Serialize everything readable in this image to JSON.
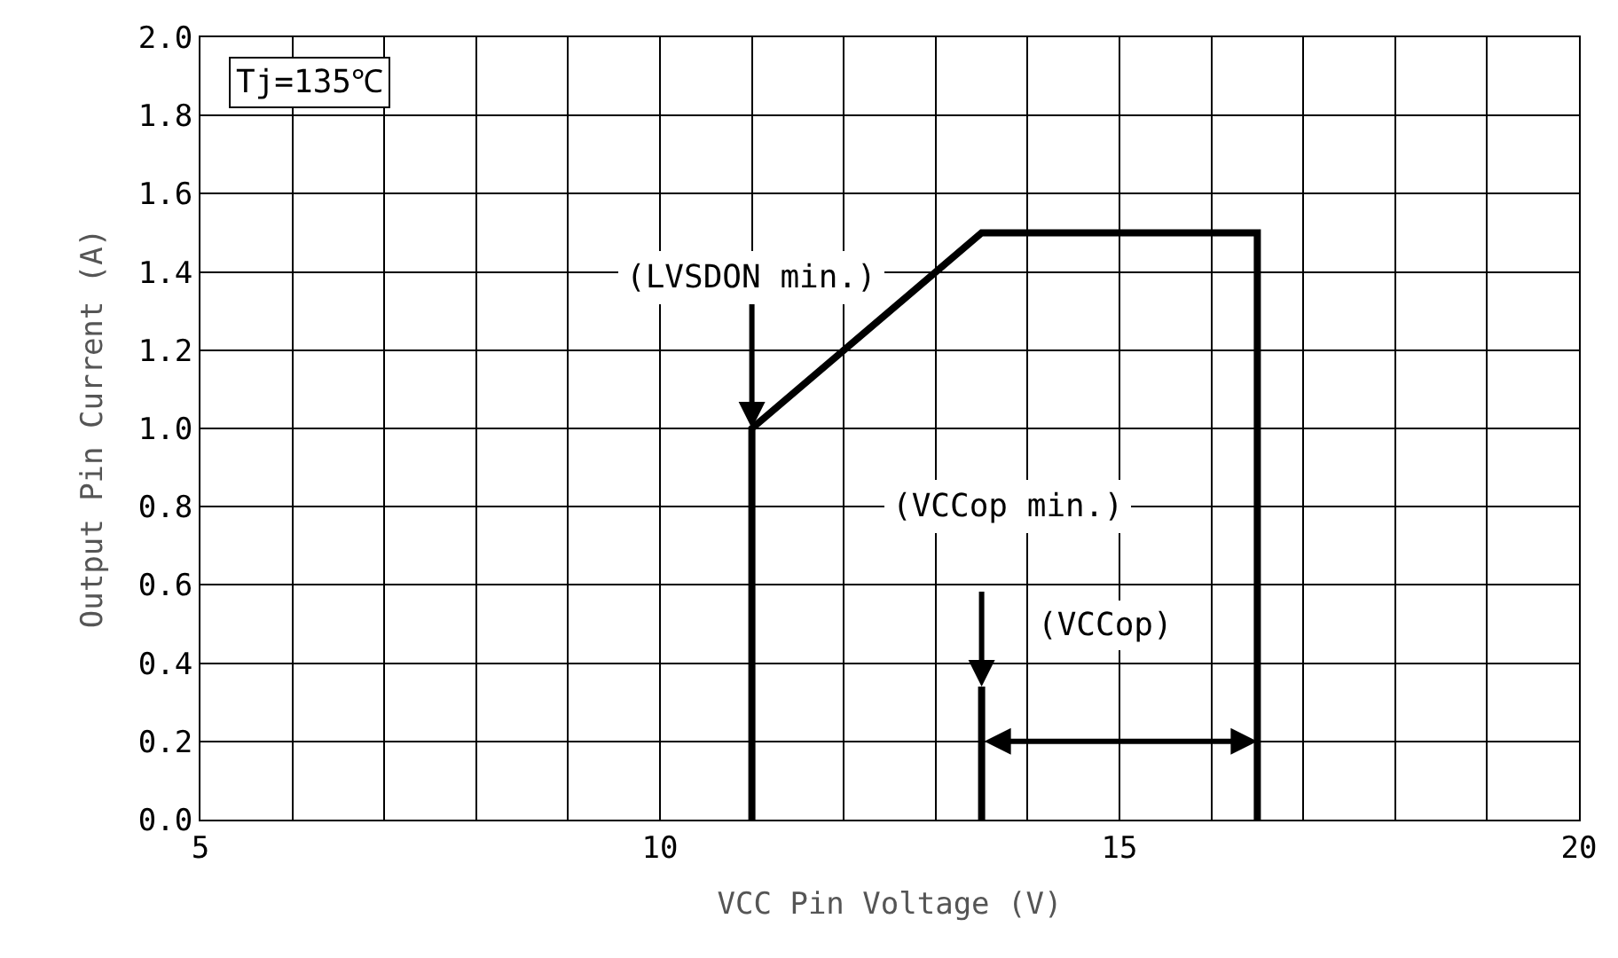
{
  "chart_data": {
    "type": "line",
    "xlabel": "VCC Pin Voltage (V)",
    "ylabel": "Output Pin Current (A)",
    "x": [
      11,
      11,
      13.5,
      16.5,
      16.5
    ],
    "series": [
      {
        "color": "#000000",
        "values": [
          0,
          1.0,
          1.5,
          1.5,
          0
        ]
      },
      {
        "color": "#000000",
        "x": [
          13.5,
          13.5
        ],
        "values": [
          0,
          0.34
        ]
      }
    ],
    "xlim": [
      5,
      20
    ],
    "xticks": [
      5,
      {
        "value": 6,
        "label": null
      },
      {
        "value": 7,
        "label": null
      },
      {
        "value": 8,
        "label": null
      },
      {
        "value": 9,
        "label": null
      },
      10,
      {
        "value": 11,
        "label": null
      },
      {
        "value": 12,
        "label": null
      },
      {
        "value": 13,
        "label": null
      },
      {
        "value": 14,
        "label": null
      },
      15,
      {
        "value": 16,
        "label": null
      },
      {
        "value": 17,
        "label": null
      },
      {
        "value": 18,
        "label": null
      },
      {
        "value": 19,
        "label": null
      },
      20
    ],
    "ylim": [
      0,
      2.0
    ],
    "yticks": [
      {
        "value": 0,
        "label": "0.0"
      },
      0.2,
      0.4,
      0.6,
      0.8,
      {
        "value": 1,
        "label": "1.0"
      },
      1.2,
      1.4,
      1.6,
      1.8,
      {
        "value": 2,
        "label": "2.0"
      }
    ],
    "grid": true,
    "marker": "none",
    "line_style": "solid",
    "annotations": [
      "Tj=135℃",
      {
        "text": "(LVSDON min.)",
        "x": 11,
        "y": 1.0
      },
      "(VCCop min.)",
      "(VCCop)"
    ]
  }
}
